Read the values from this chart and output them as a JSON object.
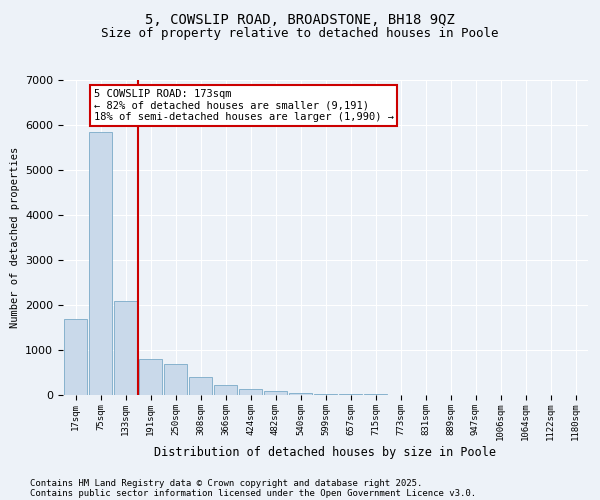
{
  "title1": "5, COWSLIP ROAD, BROADSTONE, BH18 9QZ",
  "title2": "Size of property relative to detached houses in Poole",
  "xlabel": "Distribution of detached houses by size in Poole",
  "ylabel": "Number of detached properties",
  "categories": [
    "17sqm",
    "75sqm",
    "133sqm",
    "191sqm",
    "250sqm",
    "308sqm",
    "366sqm",
    "424sqm",
    "482sqm",
    "540sqm",
    "599sqm",
    "657sqm",
    "715sqm",
    "773sqm",
    "831sqm",
    "889sqm",
    "947sqm",
    "1006sqm",
    "1064sqm",
    "1122sqm",
    "1180sqm"
  ],
  "values": [
    1700,
    5850,
    2100,
    800,
    700,
    390,
    220,
    130,
    80,
    50,
    30,
    20,
    12,
    8,
    5,
    3,
    2,
    1,
    1,
    0,
    0
  ],
  "bar_color": "#c9d9ea",
  "bar_edge_color": "#7aaac8",
  "property_line_color": "#cc0000",
  "annotation_text": "5 COWSLIP ROAD: 173sqm\n← 82% of detached houses are smaller (9,191)\n18% of semi-detached houses are larger (1,990) →",
  "annotation_box_color": "#cc0000",
  "ylim": [
    0,
    7000
  ],
  "yticks": [
    0,
    1000,
    2000,
    3000,
    4000,
    5000,
    6000,
    7000
  ],
  "footer1": "Contains HM Land Registry data © Crown copyright and database right 2025.",
  "footer2": "Contains public sector information licensed under the Open Government Licence v3.0.",
  "bg_color": "#edf2f8",
  "plot_bg_color": "#edf2f8",
  "grid_color": "#ffffff",
  "title1_fontsize": 10,
  "title2_fontsize": 9,
  "annotation_fontsize": 7.5,
  "tick_fontsize": 6.5,
  "footer_fontsize": 6.5
}
